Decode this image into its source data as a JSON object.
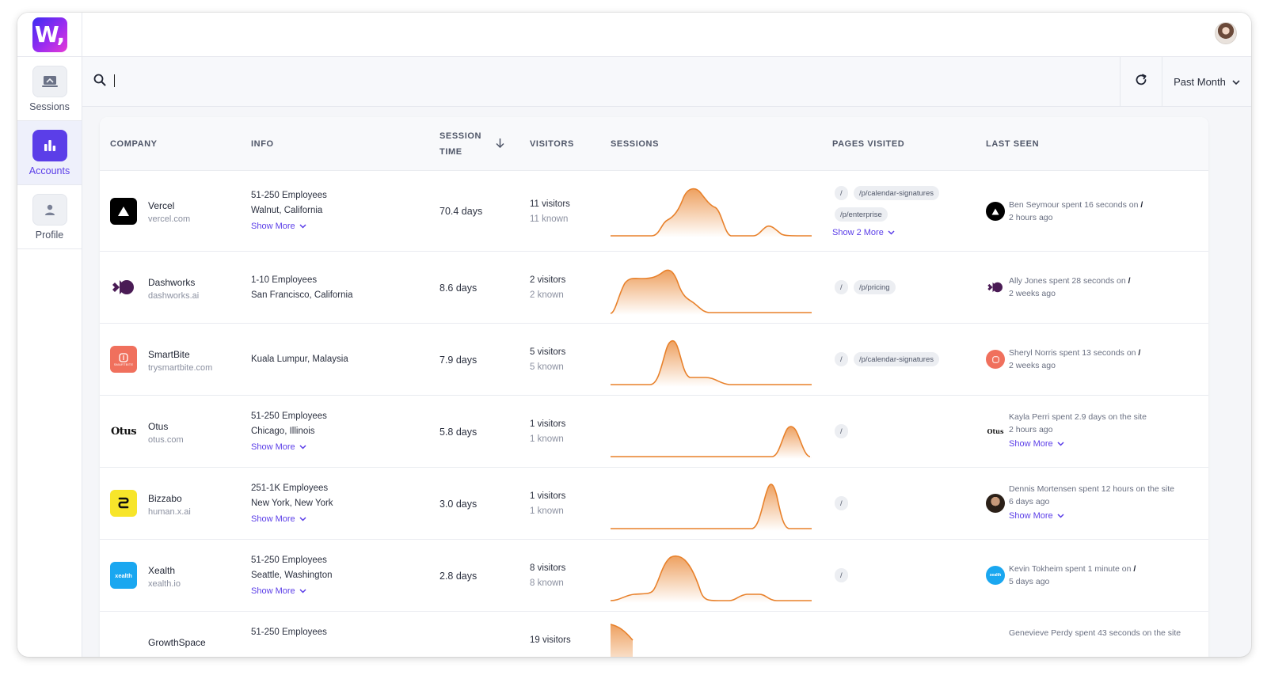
{
  "app": {
    "logo_text": "W,",
    "nav": [
      {
        "label": "Sessions",
        "icon": "laptop-icon"
      },
      {
        "label": "Accounts",
        "icon": "bar-chart-icon",
        "active": true
      },
      {
        "label": "Profile",
        "icon": "person-icon"
      }
    ]
  },
  "search": {
    "value": "",
    "placeholder": ""
  },
  "range_select": {
    "value": "Past Month"
  },
  "table": {
    "headers": {
      "company": "COMPANY",
      "info": "INFO",
      "session_time_1": "SESSION",
      "session_time_2": "TIME",
      "visitors": "VISITORS",
      "sessions": "SESSIONS",
      "pages": "PAGES VISITED",
      "last_seen": "LAST SEEN"
    },
    "rows": [
      {
        "name": "Vercel",
        "domain": "vercel.com",
        "info1": "51-250 Employees",
        "info2": "Walnut, California",
        "show_more": "Show More",
        "session_time": "70.4 days",
        "visitors": "11 visitors",
        "known": "11 known",
        "pages": [
          "/",
          "/p/calendar-signatures",
          "/p/enterprise"
        ],
        "pages_more": "Show 2 More",
        "last_seen_text": "Ben Seymour spent 16 seconds on",
        "last_seen_page": "/",
        "last_seen_time": "2 hours ago"
      },
      {
        "name": "Dashworks",
        "domain": "dashworks.ai",
        "info1": "1-10 Employees",
        "info2": "San Francisco, California",
        "session_time": "8.6 days",
        "visitors": "2 visitors",
        "known": "2 known",
        "pages": [
          "/",
          "/p/pricing"
        ],
        "last_seen_text": "Ally Jones spent 28 seconds on",
        "last_seen_page": "/",
        "last_seen_time": "2 weeks ago"
      },
      {
        "name": "SmartBite",
        "domain": "trysmartbite.com",
        "logo_text": "SMARTBITE",
        "info1": "Kuala Lumpur, Malaysia",
        "session_time": "7.9 days",
        "visitors": "5 visitors",
        "known": "5 known",
        "pages": [
          "/",
          "/p/calendar-signatures"
        ],
        "last_seen_text": "Sheryl Norris spent 13 seconds on",
        "last_seen_page": "/",
        "last_seen_time": "2 weeks ago"
      },
      {
        "name": "Otus",
        "domain": "otus.com",
        "logo_text": "Otus",
        "info1": "51-250 Employees",
        "info2": "Chicago, Illinois",
        "show_more": "Show More",
        "session_time": "5.8 days",
        "visitors": "1 visitors",
        "known": "1 known",
        "pages": [
          "/"
        ],
        "last_seen_text": "Kayla Perri spent 2.9 days on the site",
        "last_seen_time": "2 hours ago",
        "last_seen_more": "Show More"
      },
      {
        "name": "Bizzabo",
        "domain": "human.x.ai",
        "info1": "251-1K Employees",
        "info2": "New York, New York",
        "show_more": "Show More",
        "session_time": "3.0 days",
        "visitors": "1 visitors",
        "known": "1 known",
        "pages": [
          "/"
        ],
        "last_seen_text": "Dennis Mortensen spent 12 hours on the site",
        "last_seen_time": "6 days ago",
        "last_seen_more": "Show More"
      },
      {
        "name": "Xealth",
        "domain": "xealth.io",
        "logo_text": "xealth",
        "info1": "51-250 Employees",
        "info2": "Seattle, Washington",
        "show_more": "Show More",
        "session_time": "2.8 days",
        "visitors": "8 visitors",
        "known": "8 known",
        "pages": [
          "/"
        ],
        "last_seen_text": "Kevin Tokheim spent 1 minute on",
        "last_seen_page": "/",
        "last_seen_time": "5 days ago"
      },
      {
        "name": "GrowthSpace",
        "info1": "51-250 Employees",
        "visitors": "19 visitors",
        "last_seen_text": "Genevieve Perdy spent 43 seconds on the site"
      }
    ]
  },
  "colors": {
    "accent": "#5b3ee8",
    "sparkline": "#e8812b"
  }
}
